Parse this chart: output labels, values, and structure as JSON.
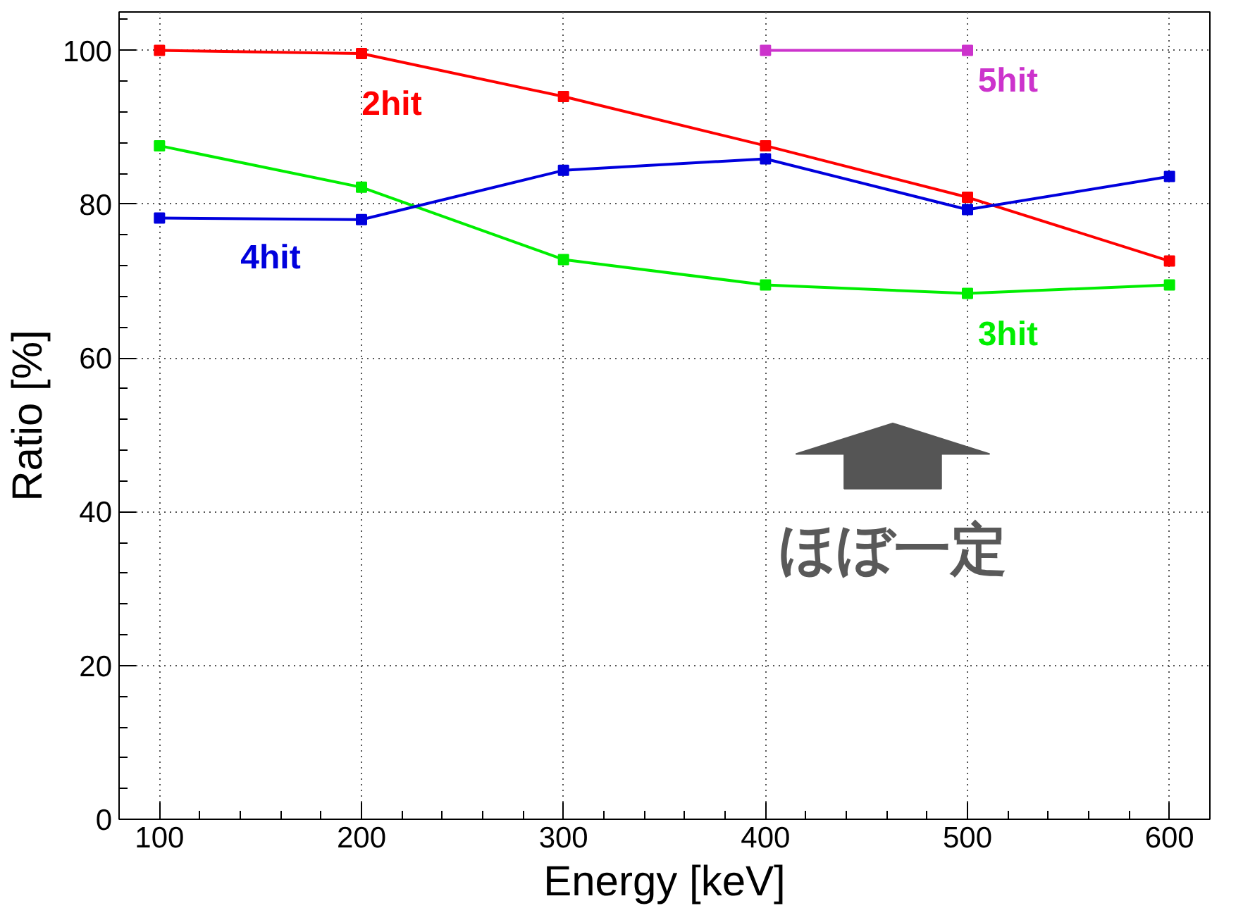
{
  "chart_data": {
    "type": "line",
    "xlabel": "Energy [keV]",
    "ylabel": "Ratio [%]",
    "x": [
      100,
      200,
      300,
      400,
      500,
      600
    ],
    "series": [
      {
        "name": "2hit",
        "color": "#ff0000",
        "values": [
          100,
          99.6,
          94,
          87.6,
          80.9,
          72.6
        ]
      },
      {
        "name": "3hit",
        "color": "#00ee00",
        "values": [
          87.6,
          82.2,
          72.8,
          69.5,
          68.4,
          69.5
        ]
      },
      {
        "name": "4hit",
        "color": "#0000dd",
        "values": [
          78.2,
          78,
          84.4,
          85.9,
          79.3,
          83.6
        ]
      },
      {
        "name": "5hit",
        "color": "#cc33cc",
        "values": [
          null,
          null,
          null,
          100,
          100,
          null
        ]
      }
    ],
    "xlim": [
      80,
      620
    ],
    "ylim": [
      0,
      105
    ],
    "xticks": [
      100,
      200,
      300,
      400,
      500,
      600
    ],
    "yticks": [
      0,
      20,
      40,
      60,
      80,
      100
    ],
    "grid": true,
    "marker": "square",
    "line_style": "solid",
    "annotations": [
      "ほぼ一定"
    ]
  }
}
